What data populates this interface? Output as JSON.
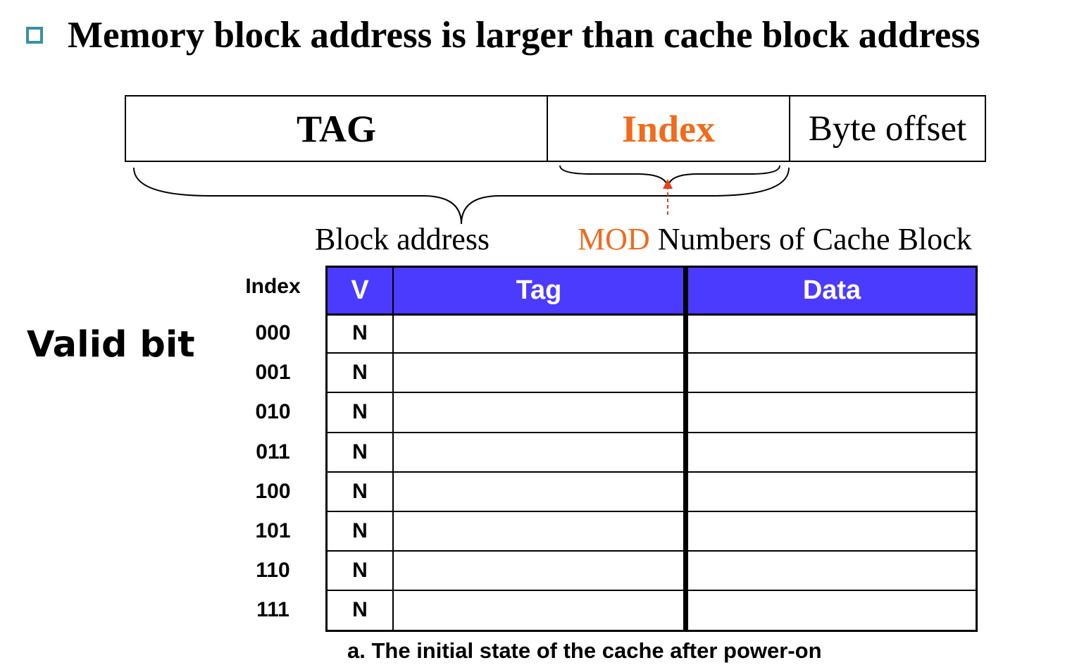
{
  "heading": {
    "text": "Memory block address is larger than cache block address",
    "bullet_color": "#3a8fa8"
  },
  "address_fields": {
    "tag": "TAG",
    "index": "Index",
    "byte_offset": "Byte offset",
    "index_color": "#f26a1b"
  },
  "labels": {
    "block_address": "Block address",
    "mod_word": "MOD",
    "mod_rest": " Numbers of Cache Block",
    "valid_bit": "Valid bit"
  },
  "cache_table": {
    "index_header": "Index",
    "columns": [
      "V",
      "Tag",
      "Data"
    ],
    "header_color": "#4b3bff",
    "rows": [
      {
        "index": "000",
        "v": "N",
        "tag": "",
        "data": ""
      },
      {
        "index": "001",
        "v": "N",
        "tag": "",
        "data": ""
      },
      {
        "index": "010",
        "v": "N",
        "tag": "",
        "data": ""
      },
      {
        "index": "011",
        "v": "N",
        "tag": "",
        "data": ""
      },
      {
        "index": "100",
        "v": "N",
        "tag": "",
        "data": ""
      },
      {
        "index": "101",
        "v": "N",
        "tag": "",
        "data": ""
      },
      {
        "index": "110",
        "v": "N",
        "tag": "",
        "data": ""
      },
      {
        "index": "111",
        "v": "N",
        "tag": "",
        "data": ""
      }
    ]
  },
  "caption": "a. The initial state of the cache after power-on"
}
